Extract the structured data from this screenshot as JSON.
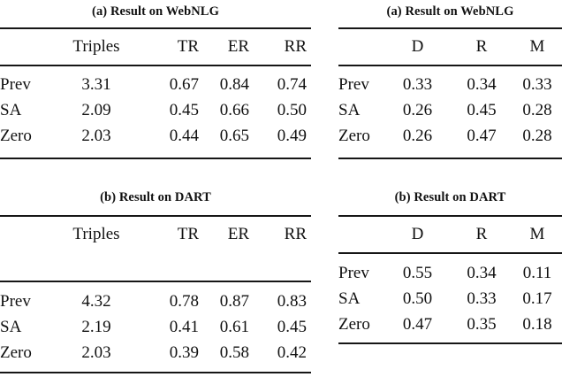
{
  "page": {
    "background": "#ffffff",
    "text_color": "#111111",
    "rule_color": "#161616"
  },
  "tables": [
    {
      "caption": "(a) Result on WebNLG",
      "columns": [
        "",
        "Triples",
        "TR",
        "ER",
        "RR"
      ],
      "rows": [
        {
          "label": "Prev",
          "values": [
            "3.31",
            "0.67",
            "0.84",
            "0.74"
          ]
        },
        {
          "label": "SA",
          "values": [
            "2.09",
            "0.45",
            "0.66",
            "0.50"
          ]
        },
        {
          "label": "Zero",
          "values": [
            "2.03",
            "0.44",
            "0.65",
            "0.49"
          ]
        }
      ]
    },
    {
      "caption": "(a) Result on WebNLG",
      "columns": [
        "",
        "D",
        "R",
        "M"
      ],
      "rows": [
        {
          "label": "Prev",
          "values": [
            "0.33",
            "0.34",
            "0.33"
          ]
        },
        {
          "label": "SA",
          "values": [
            "0.26",
            "0.45",
            "0.28"
          ]
        },
        {
          "label": "Zero",
          "values": [
            "0.26",
            "0.47",
            "0.28"
          ]
        }
      ]
    },
    {
      "caption": "(b) Result on DART",
      "columns": [
        "",
        "Triples",
        "TR",
        "ER",
        "RR"
      ],
      "rows": [
        {
          "label": "Prev",
          "values": [
            "4.32",
            "0.78",
            "0.87",
            "0.83"
          ]
        },
        {
          "label": "SA",
          "values": [
            "2.19",
            "0.41",
            "0.61",
            "0.45"
          ]
        },
        {
          "label": "Zero",
          "values": [
            "2.03",
            "0.39",
            "0.58",
            "0.42"
          ]
        }
      ]
    },
    {
      "caption": "(b) Result on DART",
      "columns": [
        "",
        "D",
        "R",
        "M"
      ],
      "rows": [
        {
          "label": "Prev",
          "values": [
            "0.55",
            "0.34",
            "0.11"
          ]
        },
        {
          "label": "SA",
          "values": [
            "0.50",
            "0.33",
            "0.17"
          ]
        },
        {
          "label": "Zero",
          "values": [
            "0.47",
            "0.35",
            "0.18"
          ]
        }
      ]
    }
  ]
}
